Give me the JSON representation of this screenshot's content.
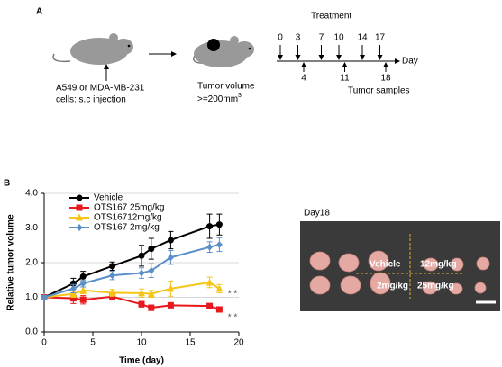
{
  "panel_a": {
    "label": "A",
    "injection": [
      "A549 or MDA-MB-231",
      "cells: s.c injection"
    ],
    "tumor": [
      "Tumor volume",
      ">=200mm",
      "3"
    ],
    "timeline": {
      "title": "Treatment",
      "treatment_days": [
        0,
        3,
        7,
        10,
        14,
        17
      ],
      "sample_days": [
        4,
        11,
        18
      ],
      "axis_label": "Day",
      "samples_label": "Tumor samples"
    }
  },
  "chart_data": {
    "type": "line",
    "panel_label": "B",
    "x_label": "Time (day)",
    "y_label": "Relative tumor volume",
    "x": [
      0,
      3,
      4,
      7,
      10,
      11,
      13,
      17,
      18
    ],
    "series": [
      {
        "name": "Vehicle",
        "color": "#000000",
        "marker": "circle",
        "values": [
          1.0,
          1.4,
          1.6,
          1.9,
          2.2,
          2.4,
          2.65,
          3.05,
          3.1
        ],
        "errors": [
          0.05,
          0.15,
          0.15,
          0.12,
          0.3,
          0.3,
          0.25,
          0.35,
          0.3
        ]
      },
      {
        "name": "OTS167 25mg/kg",
        "color": "#e8191c",
        "marker": "square",
        "values": [
          1.0,
          0.97,
          0.93,
          1.02,
          0.8,
          0.7,
          0.77,
          0.75,
          0.65
        ],
        "errors": [
          0.05,
          0.15,
          0.12,
          0.05,
          0.08,
          0.08,
          0.05,
          0.05,
          0.05
        ]
      },
      {
        "name": "OTS16712mg/kg",
        "color": "#f5c518",
        "marker": "triangle",
        "values": [
          1.0,
          1.1,
          1.2,
          1.13,
          1.12,
          1.1,
          1.25,
          1.43,
          1.25
        ],
        "errors": [
          0.05,
          0.1,
          0.1,
          0.1,
          0.12,
          0.1,
          0.22,
          0.15,
          0.12
        ]
      },
      {
        "name": "OTS167 2mg/kg",
        "color": "#5b8fc9",
        "marker": "diamond",
        "values": [
          1.0,
          1.25,
          1.4,
          1.63,
          1.7,
          1.77,
          2.15,
          2.45,
          2.52
        ],
        "errors": [
          0.05,
          0.12,
          0.1,
          0.12,
          0.15,
          0.2,
          0.2,
          0.15,
          0.2
        ]
      }
    ],
    "xlim": [
      0,
      20
    ],
    "xticks": [
      0,
      5,
      10,
      15,
      20
    ],
    "ylim": [
      0,
      4
    ],
    "yticks": [
      {
        "value": 0,
        "label": "0.0"
      },
      {
        "value": 1,
        "label": "1.0"
      },
      {
        "value": 2,
        "label": "2.0"
      },
      {
        "value": 3,
        "label": "3.0"
      },
      {
        "value": 4,
        "label": "4.0"
      }
    ],
    "grid": true,
    "legend": "top-left",
    "annotations": [
      "* *",
      "* *"
    ]
  },
  "photo": {
    "title": "Day18",
    "labels": [
      "Vehicle",
      "12mg/kg",
      "2mg/kg",
      "25mg/kg"
    ]
  }
}
